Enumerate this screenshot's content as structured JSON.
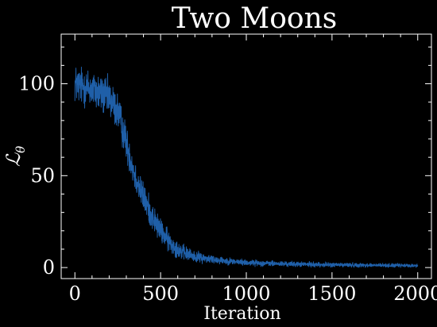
{
  "chart_data": {
    "type": "line",
    "title": "Two Moons",
    "xlabel": "Iteration",
    "ylabel": "ℒ",
    "ylabel_subscript": "θ",
    "xlim": [
      -80,
      2080
    ],
    "ylim": [
      -6,
      127
    ],
    "x_ticks": [
      0,
      500,
      1000,
      1500,
      2000
    ],
    "y_ticks": [
      0,
      50,
      100
    ],
    "x_minor_step": 100,
    "y_minor_step": 10,
    "grid": false,
    "background_color": "#000000",
    "foreground_color": "#ffffff",
    "series": [
      {
        "color": "#1f5fa8",
        "samples_per_unit": 1,
        "x_start": 0,
        "x_end": 2000,
        "trend": [
          [
            0,
            100
          ],
          [
            100,
            97
          ],
          [
            200,
            92
          ],
          [
            250,
            85
          ],
          [
            300,
            68
          ],
          [
            350,
            50
          ],
          [
            400,
            38
          ],
          [
            450,
            28
          ],
          [
            500,
            20
          ],
          [
            550,
            14
          ],
          [
            600,
            10
          ],
          [
            650,
            7.5
          ],
          [
            700,
            6
          ],
          [
            800,
            4.5
          ],
          [
            900,
            3.5
          ],
          [
            1000,
            2.7
          ],
          [
            1200,
            2.0
          ],
          [
            1500,
            1.5
          ],
          [
            2000,
            1.0
          ]
        ],
        "noise": [
          [
            0,
            9
          ],
          [
            250,
            9
          ],
          [
            300,
            8
          ],
          [
            400,
            7
          ],
          [
            500,
            5.5
          ],
          [
            600,
            4
          ],
          [
            700,
            2.5
          ],
          [
            900,
            1.5
          ],
          [
            1200,
            1.2
          ],
          [
            2000,
            0.8
          ]
        ]
      }
    ]
  }
}
